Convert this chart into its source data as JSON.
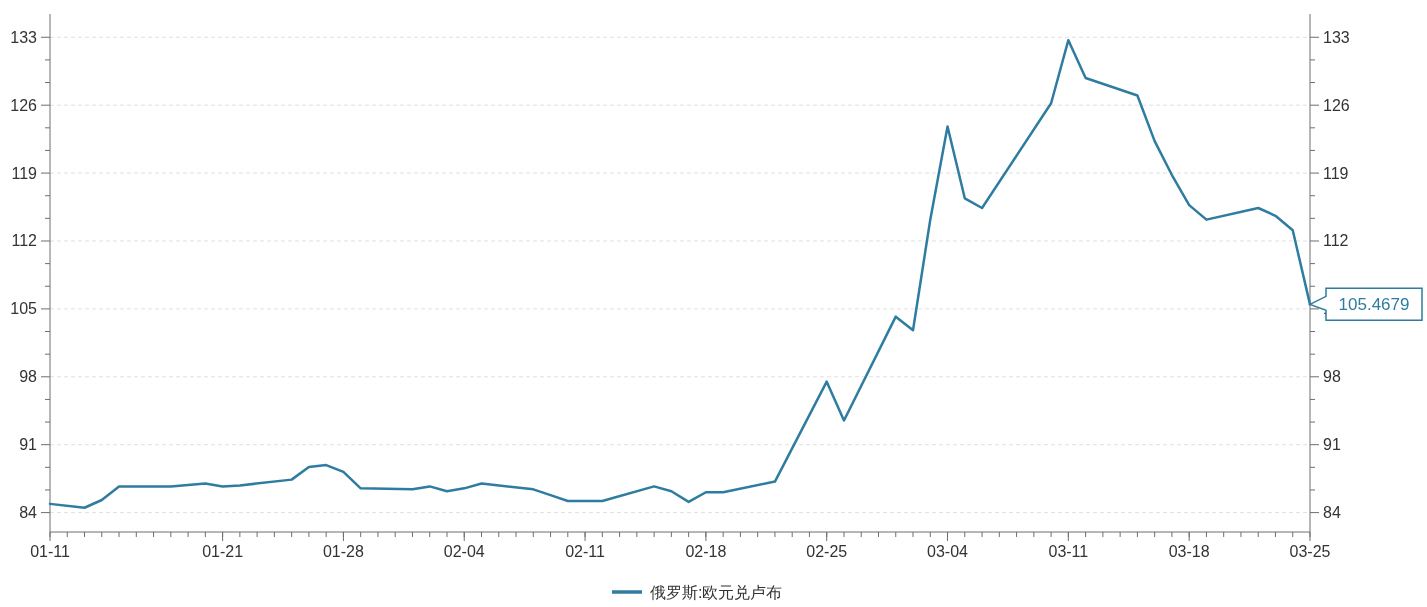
{
  "chart_data": {
    "type": "line",
    "x": [
      "--01-11",
      "--01-13",
      "--01-14",
      "--01-15",
      "--01-18",
      "--01-20",
      "--01-21",
      "--01-22",
      "--01-25",
      "--01-26",
      "--01-27",
      "--01-28",
      "--01-29",
      "--02-01",
      "--02-02",
      "--02-03",
      "--02-04",
      "--02-05",
      "--02-08",
      "--02-09",
      "--02-10",
      "--02-12",
      "--02-15",
      "--02-16",
      "--02-17",
      "--02-18",
      "--02-19",
      "--02-22",
      "--02-25",
      "--02-26",
      "--03-01",
      "--03-02",
      "--03-03",
      "--03-04",
      "--03-05",
      "--03-06",
      "--03-10",
      "--03-11",
      "--03-12",
      "--03-15",
      "--03-16",
      "--03-17",
      "--03-18",
      "--03-19",
      "--03-22",
      "--03-23",
      "--03-24",
      "--03-25"
    ],
    "series": [
      {
        "name": "俄罗斯:欧元兑卢布",
        "color": "#2e7ca0",
        "values": [
          84.9,
          84.5,
          85.3,
          86.7,
          86.7,
          87.0,
          86.7,
          86.8,
          87.4,
          88.7,
          88.9,
          88.2,
          86.5,
          86.4,
          86.7,
          86.2,
          86.5,
          87.0,
          86.4,
          85.8,
          85.2,
          85.2,
          86.7,
          86.2,
          85.1,
          86.1,
          86.1,
          87.2,
          97.5,
          93.5,
          104.2,
          102.8,
          114.2,
          123.8,
          116.4,
          115.4,
          126.2,
          132.7,
          128.8,
          127.0,
          122.3,
          118.8,
          115.7,
          114.2,
          115.4,
          114.6,
          113.1,
          105.4679
        ]
      }
    ],
    "xlim": [
      "--01-11",
      "--03-25"
    ],
    "xticks": [
      {
        "value": "--01-11",
        "label": "01-11"
      },
      {
        "value": "--01-21",
        "label": "01-21"
      },
      {
        "value": "--01-28",
        "label": "01-28"
      },
      {
        "value": "--02-04",
        "label": "02-04"
      },
      {
        "value": "--02-11",
        "label": "02-11"
      },
      {
        "value": "--02-18",
        "label": "02-18"
      },
      {
        "value": "--02-25",
        "label": "02-25"
      },
      {
        "value": "--03-04",
        "label": "03-04"
      },
      {
        "value": "--03-11",
        "label": "03-11"
      },
      {
        "value": "--03-18",
        "label": "03-18"
      },
      {
        "value": "--03-25",
        "label": "03-25"
      }
    ],
    "ylim": [
      82,
      135.4
    ],
    "yticks": [
      84,
      91,
      98,
      105,
      112,
      119,
      126,
      133
    ],
    "y2lim": [
      82,
      135.4
    ],
    "y2ticks": [
      84,
      91,
      98,
      105,
      112,
      119,
      126,
      133
    ],
    "grid": "y",
    "legend": "bottom",
    "marker": "none",
    "line_style": "solid",
    "annotations": [
      {
        "text": "105.4679",
        "x": "--03-25",
        "y": 105.4679
      }
    ]
  }
}
